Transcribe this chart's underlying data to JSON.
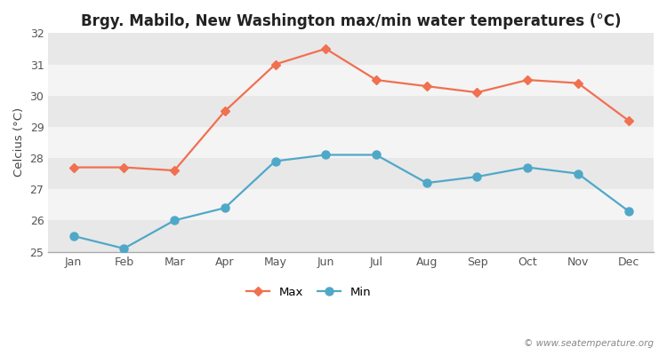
{
  "title": "Brgy. Mabilo, New Washington max/min water temperatures (°C)",
  "ylabel": "Celcius (°C)",
  "months": [
    "Jan",
    "Feb",
    "Mar",
    "Apr",
    "May",
    "Jun",
    "Jul",
    "Aug",
    "Sep",
    "Oct",
    "Nov",
    "Dec"
  ],
  "max_temps": [
    27.7,
    27.7,
    27.6,
    29.5,
    31.0,
    31.5,
    30.5,
    30.3,
    30.1,
    30.5,
    30.4,
    29.2
  ],
  "min_temps": [
    25.5,
    25.1,
    26.0,
    26.4,
    27.9,
    28.1,
    28.1,
    27.2,
    27.4,
    27.7,
    27.5,
    26.3
  ],
  "max_color": "#f07050",
  "min_color": "#50a8c8",
  "fig_bg_color": "#ffffff",
  "band_colors": [
    "#e8e8e8",
    "#f4f4f4"
  ],
  "ylim": [
    25,
    32
  ],
  "yticks": [
    25,
    26,
    27,
    28,
    29,
    30,
    31,
    32
  ],
  "legend_labels": [
    "Max",
    "Min"
  ],
  "watermark": "© www.seatemperature.org",
  "title_fontsize": 12,
  "label_fontsize": 9.5,
  "tick_fontsize": 9
}
